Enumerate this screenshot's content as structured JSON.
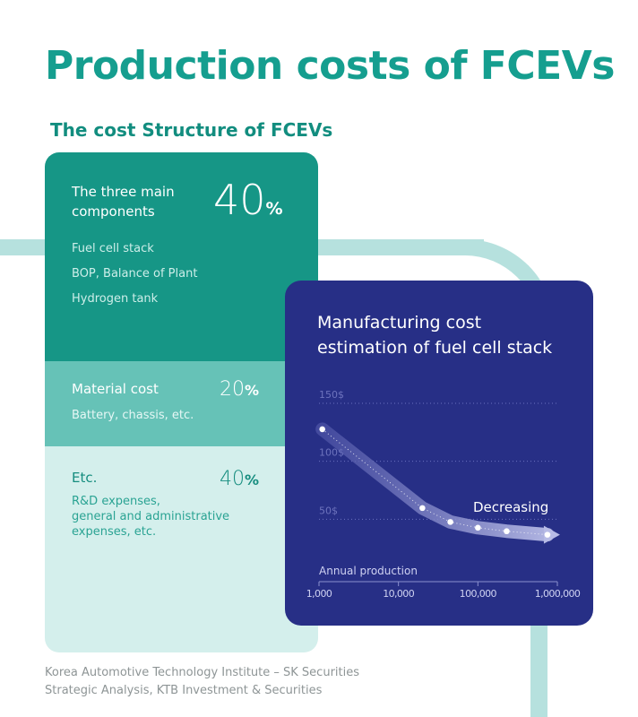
{
  "title": "Production costs of FCEVs",
  "subtitle": "The cost Structure of FCEVs",
  "structure": {
    "main": {
      "label_line1": "The three main",
      "label_line2": "components",
      "pct": "40",
      "unit": "%",
      "items": [
        "Fuel cell stack",
        "BOP, Balance of Plant",
        "Hydrogen tank"
      ]
    },
    "material": {
      "label": "Material cost",
      "pct": "20",
      "unit": "%",
      "desc": "Battery, chassis, etc."
    },
    "etc": {
      "label": "Etc.",
      "pct": "40",
      "unit": "%",
      "desc_lines": [
        "R&D expenses,",
        "general and administrative",
        "expenses, etc."
      ]
    }
  },
  "panel": {
    "title_line1": "Manufacturing cost",
    "title_line2": "estimation of fuel cell stack"
  },
  "chart_data": {
    "type": "line",
    "title": "Manufacturing cost estimation of fuel cell stack",
    "xlabel": "Annual production",
    "x_scale": "log",
    "x_ticks": [
      "1,000",
      "10,000",
      "100,000",
      "1,000,000"
    ],
    "y_ticks": [
      "150$",
      "100$",
      "50$"
    ],
    "ylim": [
      0,
      150
    ],
    "annotation": "Decreasing",
    "series": [
      {
        "points": [
          {
            "x": 1100,
            "y": 123
          },
          {
            "x": 20000,
            "y": 55
          },
          {
            "x": 45000,
            "y": 43
          },
          {
            "x": 100000,
            "y": 38
          },
          {
            "x": 230000,
            "y": 35
          },
          {
            "x": 750000,
            "y": 32
          }
        ]
      }
    ],
    "grid": true
  },
  "colors": {
    "teal_dark": "#169686",
    "teal_mid": "#66c2b7",
    "teal_light": "#d4efec",
    "title_teal": "#159e8f",
    "panel_navy": "#272f86",
    "pipe": "#b6e1de"
  },
  "source_lines": [
    "Korea Automotive Technology Institute – SK Securities",
    "Strategic Analysis, KTB Investment & Securities"
  ]
}
